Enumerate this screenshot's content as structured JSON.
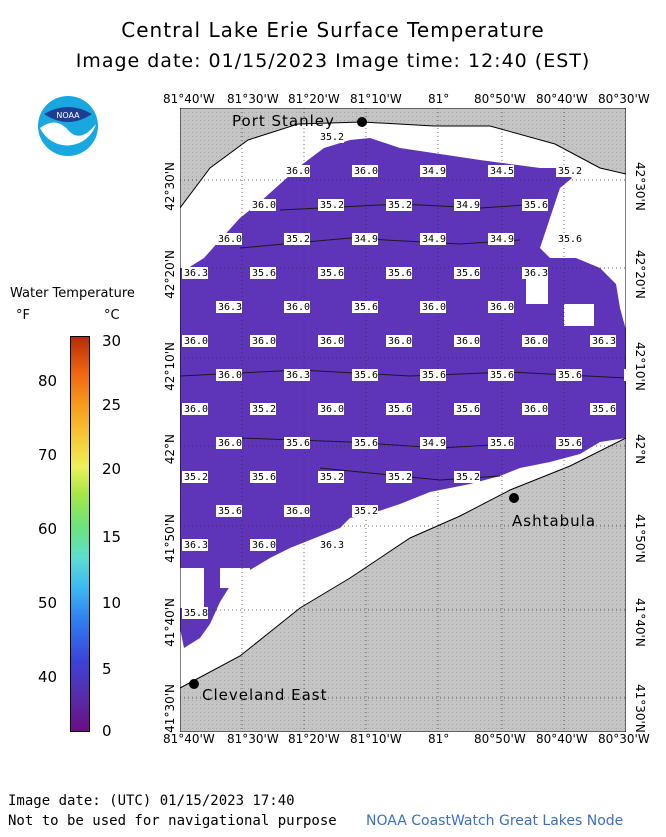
{
  "title": "Central Lake Erie Surface Temperature",
  "subtitle": "Image date: 01/15/2023     Image time: 12:40 (EST)",
  "logo_text": "NOAA",
  "legend": {
    "title": "Water Temperature",
    "unit_f": "°F",
    "unit_c": "°C",
    "f_ticks": [
      "80",
      "70",
      "60",
      "50",
      "40"
    ],
    "c_ticks": [
      "30",
      "25",
      "20",
      "15",
      "10",
      "5",
      "0"
    ]
  },
  "lon_labels": [
    "81°40'W",
    "81°30'W",
    "81°20'W",
    "81°10'W",
    "81°",
    "80°50'W",
    "80°40'W",
    "80°30'W"
  ],
  "lat_labels": [
    "42°30'N",
    "42°20'N",
    "42°10'N",
    "42°N",
    "41°50'N",
    "41°40'N",
    "41°30'N"
  ],
  "cities": [
    {
      "name": "Port Stanley"
    },
    {
      "name": "Ashtabula"
    },
    {
      "name": "Cleveland East"
    }
  ],
  "temperature_labels": [
    {
      "row": 0,
      "values": [
        "35.2"
      ]
    },
    {
      "row": 1,
      "values": [
        "36.0",
        "36.0",
        "34.9",
        "34.5",
        "35.2"
      ]
    },
    {
      "row": 2,
      "values": [
        "36.0",
        "35.2",
        "35.2",
        "34.9",
        "35.6"
      ]
    },
    {
      "row": 3,
      "values": [
        "36.0",
        "35.2",
        "34.9",
        "34.9",
        "34.9",
        "35.6"
      ]
    },
    {
      "row": 4,
      "values": [
        "36.3",
        "35.6",
        "35.6",
        "35.6",
        "35.6",
        "36.3"
      ]
    },
    {
      "row": 5,
      "values": [
        "36.3",
        "36.0",
        "35.6",
        "36.0",
        "36.0"
      ]
    },
    {
      "row": 6,
      "values": [
        "36.0",
        "36.0",
        "36.0",
        "36.0",
        "36.0",
        "36.0",
        "36.3"
      ]
    },
    {
      "row": 7,
      "values": [
        "36.0",
        "36.3",
        "35.6",
        "35.6",
        "35.6",
        "35.6",
        "36.0"
      ]
    },
    {
      "row": 8,
      "values": [
        "36.0",
        "35.2",
        "36.0",
        "35.6",
        "35.6",
        "36.0",
        "35.6"
      ]
    },
    {
      "row": 9,
      "values": [
        "36.0",
        "35.6",
        "35.6",
        "34.9",
        "35.6",
        "35.6"
      ]
    },
    {
      "row": 10,
      "values": [
        "35.2",
        "35.6",
        "35.2",
        "35.2",
        "35.2"
      ]
    },
    {
      "row": 11,
      "values": [
        "35.6",
        "36.0",
        "35.2"
      ]
    },
    {
      "row": 12,
      "values": [
        "36.3",
        "36.0",
        "36.3"
      ]
    },
    {
      "row": 13,
      "values": [
        "35.8"
      ]
    }
  ],
  "footer": {
    "date": "Image date: (UTC) 01/15/2023  17:40",
    "warning": "Not to be used for navigational purpose",
    "credit": "NOAA CoastWatch Great Lakes Node"
  },
  "colors": {
    "land": "#c0c0c0",
    "water": "#5e35b8",
    "nodata": "#ffffff"
  }
}
